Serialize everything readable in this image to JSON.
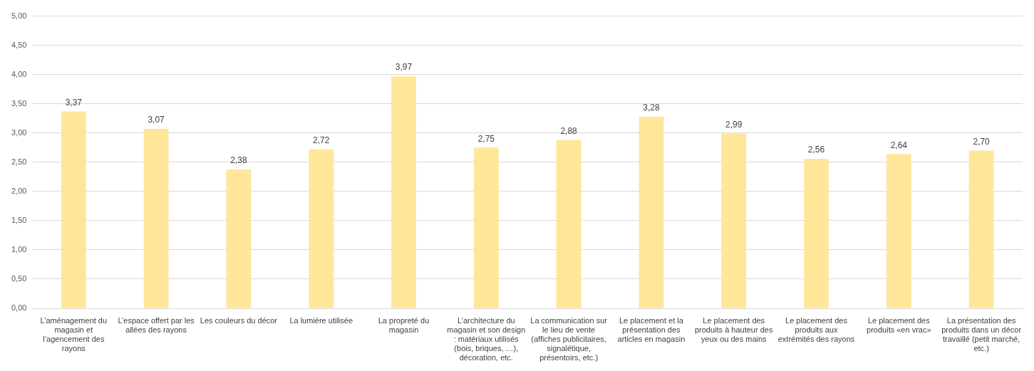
{
  "chart_data": {
    "type": "bar",
    "categories": [
      "L’aménagement du magasin et l’agencement des rayons",
      "L’espace offert par les allées des rayons",
      "Les couleurs du décor",
      "La lumière utilisée",
      "La propreté du magasin",
      "L’architecture du magasin et son design : matériaux utilisés (bois, briques, …), décoration, etc.",
      "La communication sur le lieu de vente (affiches publicitaires, signalétique, présentoirs, etc.)",
      "Le placement et la présentation des articles en magasin",
      "Le placement des produits à hauteur des yeux ou des mains",
      "Le placement des produits aux extrémités des rayons",
      "Le placement des produits «en vrac»",
      "La présentation des produits dans un décor travaillé (petit marché, etc.)"
    ],
    "values": [
      3.37,
      3.07,
      2.38,
      2.72,
      3.97,
      2.75,
      2.88,
      3.28,
      2.99,
      2.56,
      2.64,
      2.7
    ],
    "color": "#ffe699",
    "ylim": [
      0,
      5
    ],
    "yticks": [
      {
        "value": 0,
        "label": "0,00"
      },
      {
        "value": 0.5,
        "label": "0,50"
      },
      {
        "value": 1,
        "label": "1,00"
      },
      {
        "value": 1.5,
        "label": "1,50"
      },
      {
        "value": 2,
        "label": "2,00"
      },
      {
        "value": 2.5,
        "label": "2,50"
      },
      {
        "value": 3,
        "label": "3,00"
      },
      {
        "value": 3.5,
        "label": "3,50"
      },
      {
        "value": 4,
        "label": "4,00"
      },
      {
        "value": 4.5,
        "label": "4,50"
      },
      {
        "value": 5,
        "label": "5,00"
      }
    ],
    "grid": "y",
    "value_labels": [
      "3,37",
      "3,07",
      "2,38",
      "2,72",
      "3,97",
      "2,75",
      "2,88",
      "3,28",
      "2,99",
      "2,56",
      "2,64",
      "2,70"
    ]
  }
}
